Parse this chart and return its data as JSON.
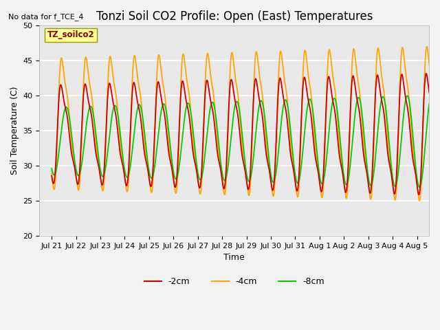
{
  "title": "Tonzi Soil CO2 Profile: Open (East) Temperatures",
  "xlabel": "Time",
  "ylabel": "Soil Temperature (C)",
  "no_data_text": "No data for f_TCE_4",
  "legend_label": "TZ_soilco2",
  "ylim": [
    20,
    50
  ],
  "xtick_labels": [
    "Jul 21",
    "Jul 22",
    "Jul 23",
    "Jul 24",
    "Jul 25",
    "Jul 26",
    "Jul 27",
    "Jul 28",
    "Jul 29",
    "Jul 30",
    "Jul 31",
    "Aug 1",
    "Aug 2",
    "Aug 3",
    "Aug 4",
    "Aug 5"
  ],
  "xtick_positions": [
    0,
    1,
    2,
    3,
    4,
    5,
    6,
    7,
    8,
    9,
    10,
    11,
    12,
    13,
    14,
    15
  ],
  "series": {
    "neg2cm": {
      "color": "#cc0000",
      "label": "-2cm",
      "lw": 1.3
    },
    "neg4cm": {
      "color": "#ffa500",
      "label": "-4cm",
      "lw": 1.3
    },
    "neg8cm": {
      "color": "#00cc00",
      "label": "-8cm",
      "lw": 1.3
    }
  },
  "background_color": "#e8e8e8",
  "grid_color": "white",
  "title_fontsize": 12,
  "axis_fontsize": 9,
  "tick_fontsize": 8,
  "no_data_fontsize": 8,
  "legend_fontsize": 9
}
